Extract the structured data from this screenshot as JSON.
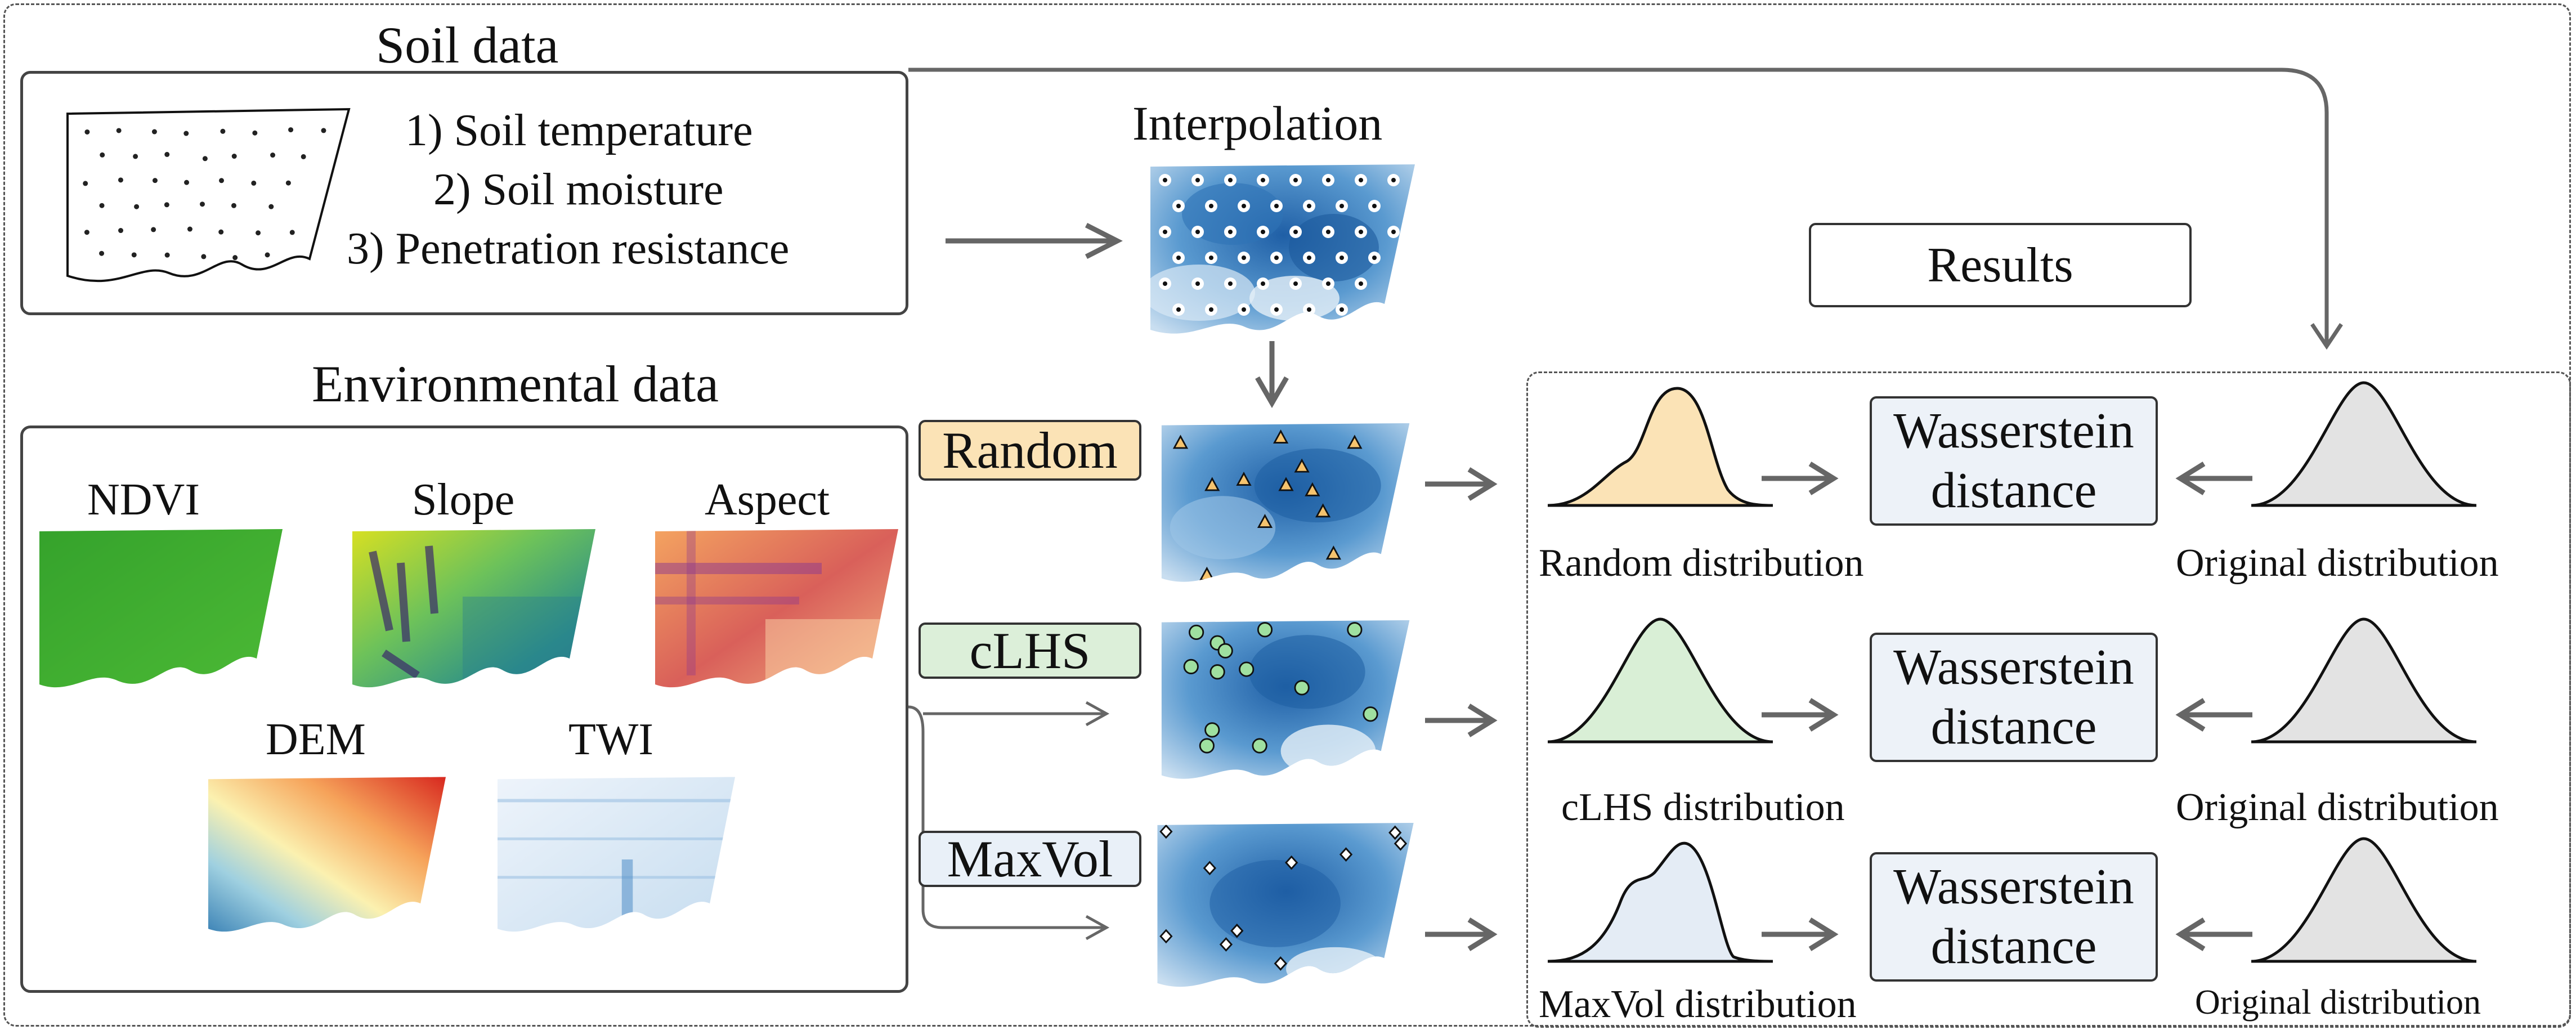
{
  "soil": {
    "title": "Soil data",
    "items": [
      "1) Soil temperature",
      "2) Soil moisture",
      "3) Penetration resistance"
    ]
  },
  "interpolation": {
    "title": "Interpolation"
  },
  "environment": {
    "title": "Environmental data",
    "layers": [
      "NDVI",
      "Slope",
      "Aspect",
      "DEM",
      "TWI"
    ]
  },
  "methods": [
    {
      "label": "Random",
      "color": "#fbe3b6",
      "marker_color": "#f5c36e",
      "marker": "triangle"
    },
    {
      "label": "cLHS",
      "color": "#dcefd9",
      "marker_color": "#9fe0a0",
      "marker": "circle"
    },
    {
      "label": "MaxVol",
      "color": "#e9f0f8",
      "marker_color": "#ffffff",
      "marker": "diamond"
    }
  ],
  "results": {
    "title": "Results",
    "rows": [
      {
        "sample_label": "Random distribution",
        "metric": [
          "Wasserstein",
          "distance"
        ],
        "original_label": "Original distribution",
        "fill": "#fbe3b6"
      },
      {
        "sample_label": "cLHS distribution",
        "metric": [
          "Wasserstein",
          "distance"
        ],
        "original_label": "Original distribution",
        "fill": "#d9efd6"
      },
      {
        "sample_label": "MaxVol distribution",
        "metric": [
          "Wasserstein",
          "distance"
        ],
        "original_label": "Original distribution",
        "fill": "#e4ecf5"
      }
    ],
    "original_fill": "#e3e3e3"
  }
}
